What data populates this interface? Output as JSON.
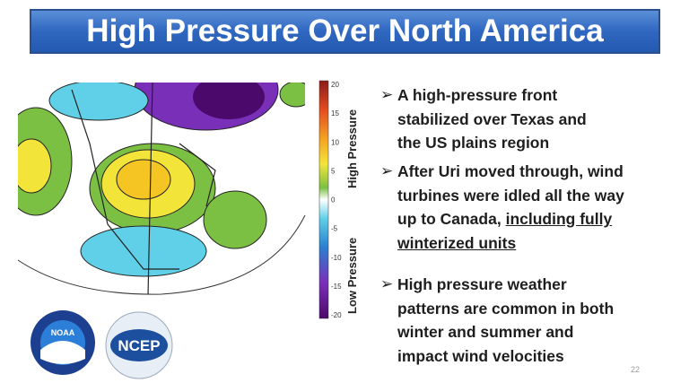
{
  "title": "High Pressure Over North America",
  "colorbar": {
    "ticks": [
      "20",
      "15",
      "10",
      "5",
      "0",
      "-5",
      "-10",
      "-15",
      "-20"
    ],
    "high_label": "High Pressure",
    "low_label": "Low Pressure"
  },
  "bullets": [
    {
      "lines": [
        "A high-pressure front",
        "stabilized over Texas and",
        "the US plains region"
      ]
    },
    {
      "lines": [
        "After Uri moved through, wind",
        "turbines were idled all the way",
        "up to Canada,"
      ],
      "underlined": [
        "including fully",
        "winterized units"
      ]
    },
    {
      "lines": [
        "High pressure weather",
        "patterns are common in both",
        "winter and summer and",
        "impact wind velocities"
      ]
    }
  ],
  "logos": [
    "NOAA",
    "NCEP"
  ],
  "slide_number": "22"
}
